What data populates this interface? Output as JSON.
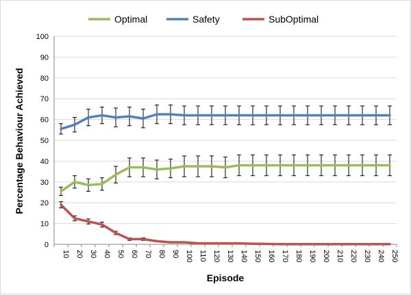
{
  "chart_data": {
    "type": "line",
    "title": "",
    "xlabel": "Episode",
    "ylabel": "Percentage Behaviour  Achieved",
    "x": [
      10,
      20,
      30,
      40,
      50,
      60,
      70,
      80,
      90,
      100,
      110,
      120,
      130,
      140,
      150,
      160,
      170,
      180,
      190,
      200,
      210,
      220,
      230,
      240,
      250
    ],
    "x_tick_labels": [
      "10",
      "20",
      "30",
      "40",
      "50",
      "60",
      "70",
      "80",
      "90",
      "100",
      "110",
      "120",
      "130",
      "140",
      "150",
      "160",
      "170",
      "180",
      "190",
      "200",
      "210",
      "220",
      "230",
      "240",
      "250"
    ],
    "ylim": [
      0,
      100
    ],
    "y_ticks": [
      0,
      10,
      20,
      30,
      40,
      50,
      60,
      70,
      80,
      90,
      100
    ],
    "grid": "horizontal",
    "legend_position": "top",
    "series": [
      {
        "name": "Optimal",
        "color": "#9bbb59",
        "values": [
          25.5,
          30,
          28.5,
          29,
          33.5,
          37,
          37,
          36,
          36.5,
          37.5,
          37.5,
          37.5,
          37,
          38,
          38,
          38,
          38,
          38,
          38,
          38,
          38,
          38,
          38,
          38,
          38
        ],
        "errors": [
          2,
          3,
          3,
          3,
          4,
          4.5,
          4.5,
          4.5,
          4.5,
          5,
          5,
          5,
          5,
          5,
          5,
          5,
          5,
          5,
          5,
          5,
          5,
          5,
          5,
          5,
          5
        ]
      },
      {
        "name": "Safety",
        "color": "#4f81bd",
        "values": [
          55.5,
          57.5,
          61,
          62,
          61,
          61.5,
          60.5,
          62.5,
          62.5,
          62,
          62,
          62,
          62,
          62,
          62,
          62,
          62,
          62,
          62,
          62,
          62,
          62,
          62,
          62,
          62
        ],
        "errors": [
          2.5,
          3.5,
          4,
          4,
          4.5,
          4.5,
          4.5,
          4.5,
          4.5,
          4.5,
          4.5,
          4.5,
          4.5,
          4.5,
          4.5,
          4.5,
          4.5,
          4.5,
          4.5,
          4.5,
          4.5,
          4.5,
          4.5,
          4.5,
          4.5
        ]
      },
      {
        "name": "SubOptimal",
        "color": "#c0504d",
        "values": [
          19,
          12.5,
          11,
          9.5,
          5.5,
          2.5,
          2.5,
          1.5,
          1,
          1,
          0.5,
          0.5,
          0.5,
          0.5,
          0.3,
          0.2,
          0.1,
          0.1,
          0.1,
          0.1,
          0.1,
          0.1,
          0.1,
          0.1,
          0.1
        ],
        "errors": [
          1.5,
          1.2,
          1.2,
          1.2,
          0.8,
          0.6,
          0.6,
          0.3,
          0.2,
          0.2,
          0.1,
          0.1,
          0.1,
          0.1,
          0.1,
          0.1,
          0,
          0,
          0,
          0,
          0,
          0,
          0,
          0,
          0
        ]
      }
    ]
  }
}
